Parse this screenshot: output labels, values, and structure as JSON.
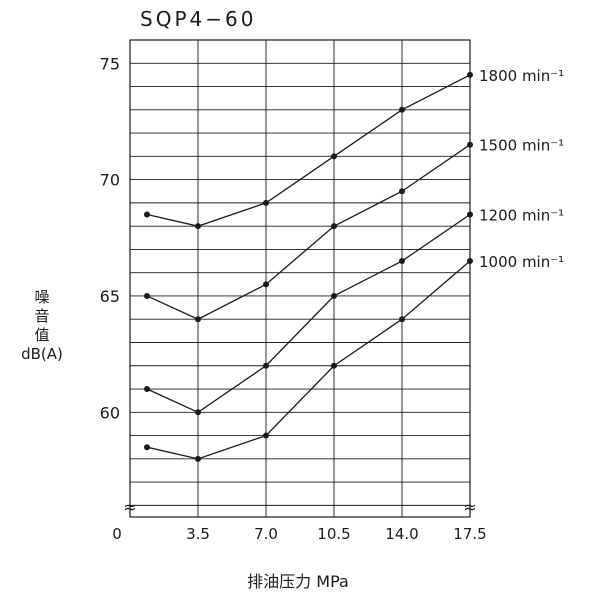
{
  "chart_data": {
    "type": "line",
    "title": "SQP4−60",
    "xlabel": "排油压力 MPa",
    "ylabel_lines": [
      "噪",
      "音",
      "值"
    ],
    "ylabel_unit": "dB(A)",
    "x_tick_labels": [
      "0",
      "3.5",
      "7.0",
      "10.5",
      "14.0",
      "17.5"
    ],
    "x_ticks": [
      0,
      3.5,
      7.0,
      10.5,
      14.0,
      17.5
    ],
    "y_tick_labels": [
      "75",
      "70",
      "65",
      "60"
    ],
    "y_ticks": [
      75,
      70,
      65,
      60
    ],
    "xlim": [
      0,
      17.5
    ],
    "ylim": [
      55.5,
      76
    ],
    "axis_break_symbol": "≈",
    "grid": true,
    "x": [
      0.875,
      3.5,
      7.0,
      10.5,
      14.0,
      17.5
    ],
    "series": [
      {
        "name": "1800 min⁻¹",
        "values": [
          68.5,
          68.0,
          69.0,
          71.0,
          73.0,
          74.5
        ]
      },
      {
        "name": "1500 min⁻¹",
        "values": [
          65.0,
          64.0,
          65.5,
          68.0,
          69.5,
          71.5
        ]
      },
      {
        "name": "1200 min⁻¹",
        "values": [
          61.0,
          60.0,
          62.0,
          65.0,
          66.5,
          68.5
        ]
      },
      {
        "name": "1000 min⁻¹",
        "values": [
          58.5,
          58.0,
          59.0,
          62.0,
          64.0,
          66.5
        ]
      }
    ],
    "legend_placement": "right, at end of each line",
    "colors": {
      "line": "#1a1a1a",
      "grid": "#1a1a1a",
      "background": "#ffffff"
    }
  }
}
